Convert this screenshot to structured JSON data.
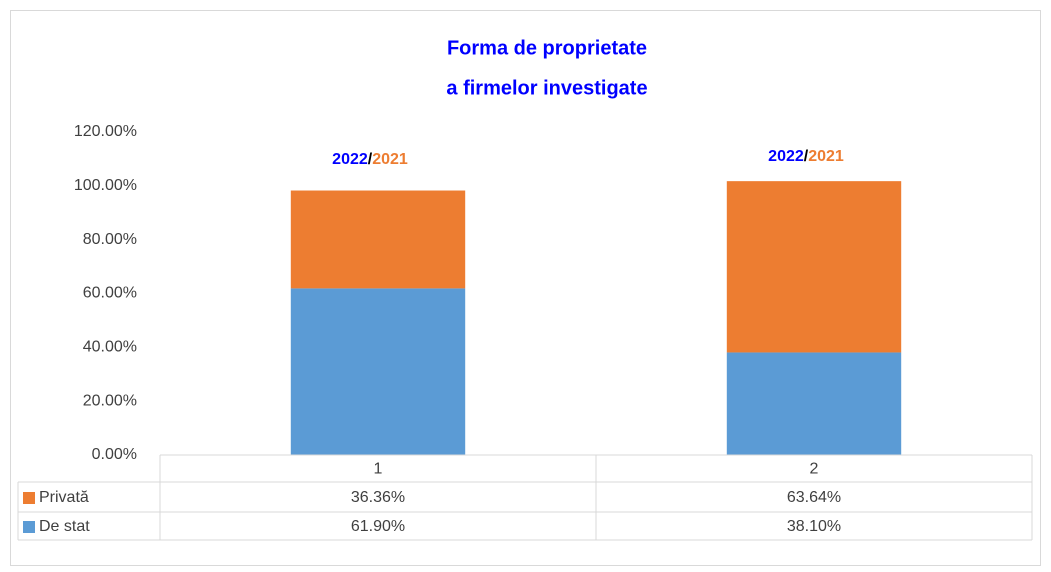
{
  "chart_data": {
    "type": "stacked_bar",
    "title": [
      "Forma de proprietate",
      "a firmelor investigate"
    ],
    "categories": [
      "1",
      "2"
    ],
    "series": [
      {
        "name": "De stat",
        "color": "#5b9bd5",
        "values": [
          61.9,
          38.1
        ],
        "value_labels": [
          "61.90%",
          "38.10%"
        ]
      },
      {
        "name": "Privată",
        "color": "#ed7d31",
        "values": [
          36.36,
          63.64
        ],
        "value_labels": [
          "36.36%",
          "63.64%"
        ]
      }
    ],
    "ylim": [
      0,
      120
    ],
    "yticks": [
      {
        "value": 0,
        "label": "0.00%"
      },
      {
        "value": 20,
        "label": "20.00%"
      },
      {
        "value": 40,
        "label": "40.00%"
      },
      {
        "value": 60,
        "label": "60.00%"
      },
      {
        "value": 80,
        "label": "80.00%"
      },
      {
        "value": 100,
        "label": "100.00%"
      },
      {
        "value": 120,
        "label": "120.00%"
      }
    ],
    "grid": false,
    "annotations": [
      {
        "parts": [
          {
            "text": "2022",
            "color": "#0000ff"
          },
          {
            "text": "/",
            "color": "#000000"
          },
          {
            "text": "2021",
            "color": "#ed7d31"
          }
        ]
      },
      {
        "parts": [
          {
            "text": "2022",
            "color": "#0000ff"
          },
          {
            "text": "/",
            "color": "#000000"
          },
          {
            "text": "2021",
            "color": "#ed7d31"
          }
        ]
      }
    ]
  }
}
